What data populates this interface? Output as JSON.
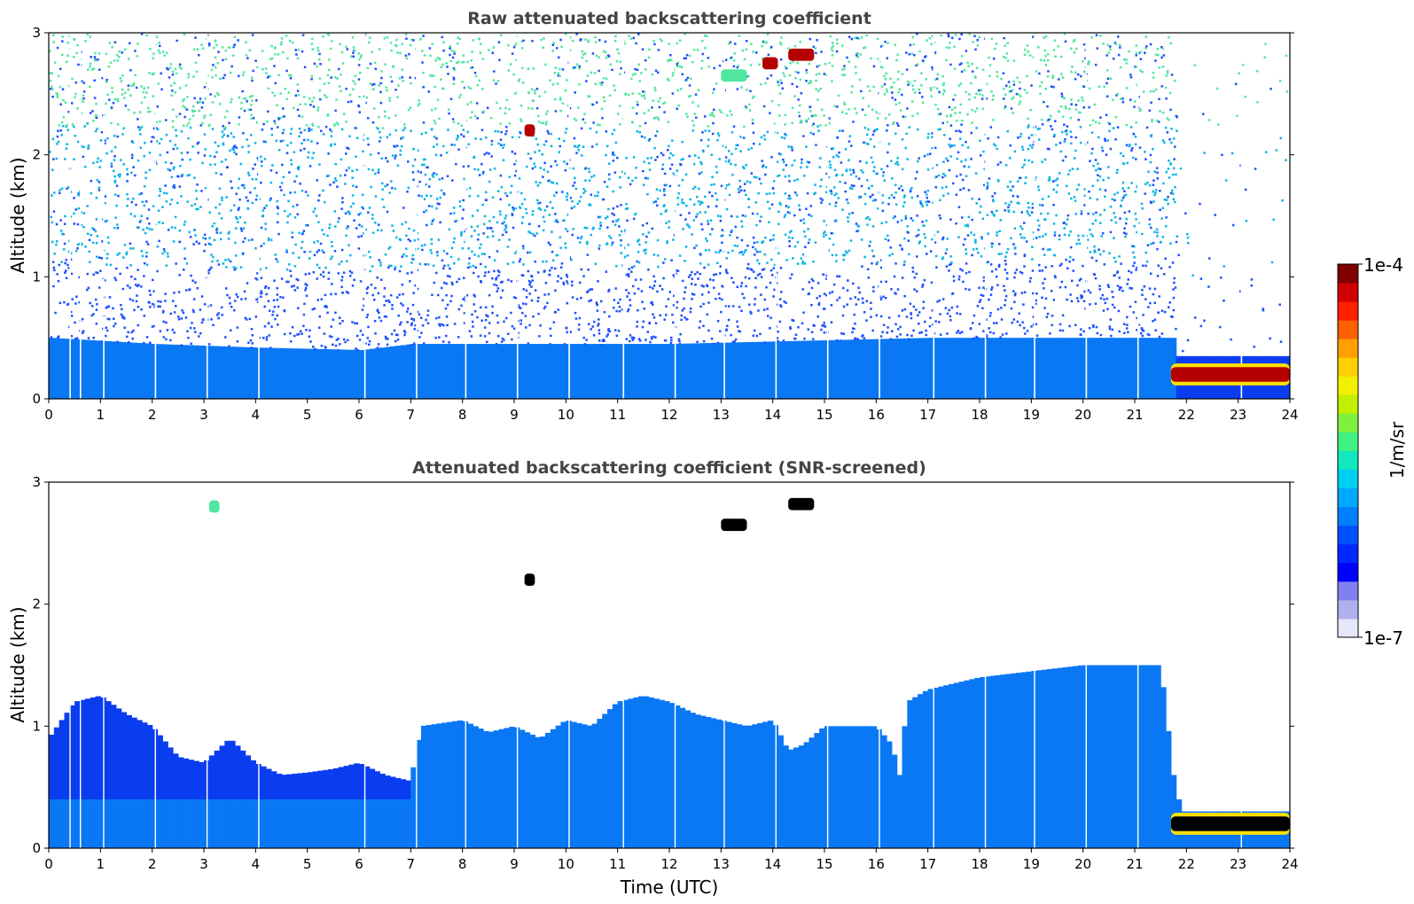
{
  "chart_data": [
    {
      "type": "heatmap",
      "title": "Raw attenuated backscattering coefficient",
      "xlabel": "",
      "ylabel": "Altitude (km)",
      "xlim": [
        0,
        24
      ],
      "ylim": [
        0,
        3
      ],
      "xticks": [
        "0",
        "1",
        "2",
        "3",
        "4",
        "5",
        "6",
        "7",
        "8",
        "9",
        "10",
        "11",
        "12",
        "13",
        "14",
        "15",
        "16",
        "17",
        "18",
        "19",
        "20",
        "21",
        "22",
        "23",
        "24"
      ],
      "yticks": [
        "0",
        "1",
        "2",
        "3"
      ],
      "screened": false,
      "boundary_layer_top_km": [
        [
          0,
          0.5
        ],
        [
          2,
          0.45
        ],
        [
          4,
          0.42
        ],
        [
          6,
          0.4
        ],
        [
          7,
          0.45
        ],
        [
          12,
          0.45
        ],
        [
          17,
          0.5
        ],
        [
          21.7,
          0.5
        ]
      ],
      "low_cloud": {
        "x_start": 21.7,
        "x_end": 24,
        "y_km": 0.2,
        "level": "1e-4"
      },
      "high_features": [
        {
          "x": [
            9.2,
            9.4
          ],
          "y_km": 2.2,
          "level": "1e-4"
        },
        {
          "x": [
            13.0,
            13.5
          ],
          "y_km": 2.65,
          "level": "1e-5"
        },
        {
          "x": [
            13.8,
            14.1
          ],
          "y_km": 2.75,
          "level": "1e-4"
        },
        {
          "x": [
            14.3,
            14.8
          ],
          "y_km": 2.82,
          "level": "1e-4"
        }
      ],
      "missing_profiles_h": [
        0.4,
        0.6,
        1.05,
        2.05,
        3.05,
        4.05,
        6.1,
        7.1,
        8.05,
        9.05,
        10.05,
        11.1,
        12.1,
        13.05,
        14.05,
        15.05,
        16.05,
        17.1,
        18.1,
        19.05,
        20.05,
        21.05,
        23.05
      ]
    },
    {
      "type": "heatmap",
      "title": "Attenuated backscattering coefficient (SNR-screened)",
      "xlabel": "Time (UTC)",
      "ylabel": "Altitude (km)",
      "xlim": [
        0,
        24
      ],
      "ylim": [
        0,
        3
      ],
      "xticks": [
        "0",
        "1",
        "2",
        "3",
        "4",
        "5",
        "6",
        "7",
        "8",
        "9",
        "10",
        "11",
        "12",
        "13",
        "14",
        "15",
        "16",
        "17",
        "18",
        "19",
        "20",
        "21",
        "22",
        "23",
        "24"
      ],
      "yticks": [
        "0",
        "1",
        "2",
        "3"
      ],
      "screened": true,
      "signal_top_km": [
        [
          0,
          0.9
        ],
        [
          0.5,
          1.2
        ],
        [
          1,
          1.25
        ],
        [
          1.5,
          1.1
        ],
        [
          2,
          1.0
        ],
        [
          2.5,
          0.75
        ],
        [
          3,
          0.7
        ],
        [
          3.5,
          0.9
        ],
        [
          4,
          0.7
        ],
        [
          4.5,
          0.6
        ],
        [
          5,
          0.62
        ],
        [
          5.5,
          0.65
        ],
        [
          6,
          0.7
        ],
        [
          6.5,
          0.6
        ],
        [
          7,
          0.55
        ],
        [
          7.2,
          1.0
        ],
        [
          8,
          1.05
        ],
        [
          8.5,
          0.95
        ],
        [
          9,
          1.0
        ],
        [
          9.5,
          0.9
        ],
        [
          10,
          1.05
        ],
        [
          10.5,
          1.0
        ],
        [
          11,
          1.2
        ],
        [
          11.5,
          1.25
        ],
        [
          12,
          1.2
        ],
        [
          12.5,
          1.1
        ],
        [
          13,
          1.05
        ],
        [
          13.5,
          1.0
        ],
        [
          14,
          1.05
        ],
        [
          14.3,
          0.8
        ],
        [
          14.6,
          0.85
        ],
        [
          15,
          1.0
        ],
        [
          15.5,
          1.0
        ],
        [
          16,
          1.0
        ],
        [
          16.3,
          0.85
        ],
        [
          16.45,
          0.6
        ],
        [
          16.6,
          1.2
        ],
        [
          17,
          1.3
        ],
        [
          18,
          1.4
        ],
        [
          19,
          1.45
        ],
        [
          20,
          1.5
        ],
        [
          21,
          1.5
        ],
        [
          21.5,
          1.5
        ],
        [
          21.75,
          0.6
        ],
        [
          21.9,
          0.3
        ],
        [
          24,
          0.3
        ]
      ],
      "low_cloud": {
        "x_start": 21.7,
        "x_end": 24,
        "y_km": 0.2,
        "level": "saturated"
      },
      "high_features": [
        {
          "x": [
            3.1,
            3.3
          ],
          "y_km": 2.8,
          "level": "1e-5"
        },
        {
          "x": [
            9.2,
            9.4
          ],
          "y_km": 2.2,
          "level": "saturated"
        },
        {
          "x": [
            13.0,
            13.5
          ],
          "y_km": 2.65,
          "level": "saturated"
        },
        {
          "x": [
            14.3,
            14.8
          ],
          "y_km": 2.82,
          "level": "saturated"
        }
      ]
    }
  ],
  "colorbar": {
    "max_label": "1e-4",
    "min_label": "1e-7",
    "label": "1/m/sr",
    "colors": [
      "#e6e6fa",
      "#b0b0ee",
      "#8080f0",
      "#0000ff",
      "#0028ff",
      "#0050ff",
      "#0080ff",
      "#00a8ff",
      "#00d0f0",
      "#10e8c0",
      "#40f080",
      "#80f040",
      "#c0f000",
      "#f0f000",
      "#ffd000",
      "#ffa000",
      "#ff6000",
      "#ff2000",
      "#d00000",
      "#800000"
    ]
  },
  "colors": {
    "boundary_layer": "#0a78f5",
    "dense_aerosol": "#0a3cf0",
    "noise_low": "#1e50ff",
    "noise_mid": "#0ab4e6",
    "noise_high": "#50e6a0",
    "hot": "#b40000",
    "saturated": "#000000"
  }
}
